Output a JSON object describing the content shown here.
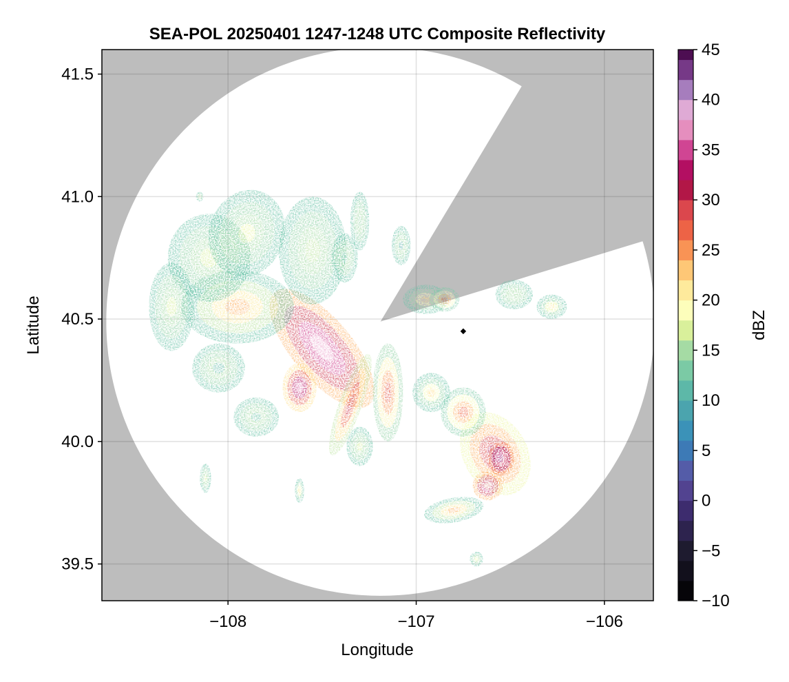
{
  "chart_data": {
    "type": "heatmap",
    "title": "SEA-POL 20250401 1247-1248 UTC Composite Reflectivity",
    "xlabel": "Longitude",
    "ylabel": "Latitude",
    "xlim": [
      -108.67,
      -105.74
    ],
    "ylim": [
      39.35,
      41.6
    ],
    "x_ticks": [
      -108,
      -107,
      -106
    ],
    "x_tick_labels": [
      "−108",
      "−107",
      "−106"
    ],
    "y_ticks": [
      39.5,
      40.0,
      40.5,
      41.0,
      41.5
    ],
    "y_tick_labels": [
      "39.5",
      "40.0",
      "40.5",
      "41.0",
      "41.5"
    ],
    "grid": true,
    "colorbar": {
      "label": "dBZ",
      "min": -10,
      "max": 45,
      "step": 2,
      "ticks": [
        -10,
        -5,
        0,
        5,
        10,
        15,
        20,
        25,
        30,
        35,
        40,
        45
      ],
      "tick_labels": [
        "−10",
        "−5",
        "0",
        "5",
        "10",
        "15",
        "20",
        "25",
        "30",
        "35",
        "40",
        "45"
      ]
    },
    "no_data_color": "#bdbdbd",
    "radar": {
      "center": [
        -107.19,
        40.49
      ],
      "range_max_lat_deg": 1.12,
      "blocked_sectors_deg": [
        [
          18,
          58
        ]
      ]
    },
    "marker": {
      "lon": -106.75,
      "lat": 40.45
    },
    "cells": [
      {
        "lon": -107.5,
        "lat": 40.38,
        "rlon": 0.16,
        "rlat": 0.3,
        "peak": 38,
        "angle": -40
      },
      {
        "lon": -107.62,
        "lat": 40.22,
        "rlon": 0.09,
        "rlat": 0.1,
        "peak": 36,
        "angle": 0
      },
      {
        "lon": -107.95,
        "lat": 40.55,
        "rlon": 0.3,
        "rlat": 0.15,
        "peak": 24,
        "angle": 0
      },
      {
        "lon": -108.1,
        "lat": 40.75,
        "rlon": 0.22,
        "rlat": 0.18,
        "peak": 17,
        "angle": 0
      },
      {
        "lon": -107.9,
        "lat": 40.85,
        "rlon": 0.2,
        "rlat": 0.18,
        "peak": 18,
        "angle": 20
      },
      {
        "lon": -107.55,
        "lat": 40.78,
        "rlon": 0.18,
        "rlat": 0.22,
        "peak": 16,
        "angle": 0
      },
      {
        "lon": -108.3,
        "lat": 40.55,
        "rlon": 0.12,
        "rlat": 0.18,
        "peak": 17,
        "angle": 0
      },
      {
        "lon": -108.05,
        "lat": 40.3,
        "rlon": 0.14,
        "rlat": 0.1,
        "peak": 11,
        "angle": 0
      },
      {
        "lon": -107.85,
        "lat": 40.1,
        "rlon": 0.12,
        "rlat": 0.08,
        "peak": 12,
        "angle": 0
      },
      {
        "lon": -107.3,
        "lat": 40.9,
        "rlon": 0.05,
        "rlat": 0.12,
        "peak": 14,
        "angle": 0
      },
      {
        "lon": -107.08,
        "lat": 40.8,
        "rlon": 0.05,
        "rlat": 0.08,
        "peak": 10,
        "angle": 0
      },
      {
        "lon": -107.38,
        "lat": 40.75,
        "rlon": 0.07,
        "rlat": 0.1,
        "peak": 13,
        "angle": 0
      },
      {
        "lon": -107.35,
        "lat": 40.15,
        "rlon": 0.06,
        "rlat": 0.22,
        "peak": 30,
        "angle": 20
      },
      {
        "lon": -107.15,
        "lat": 40.2,
        "rlon": 0.08,
        "rlat": 0.2,
        "peak": 28,
        "angle": 0
      },
      {
        "lon": -107.3,
        "lat": 39.98,
        "rlon": 0.07,
        "rlat": 0.08,
        "peak": 17,
        "angle": 0
      },
      {
        "lon": -106.95,
        "lat": 40.58,
        "rlon": 0.12,
        "rlat": 0.06,
        "peak": 22,
        "angle": 0
      },
      {
        "lon": -106.85,
        "lat": 40.58,
        "rlon": 0.08,
        "rlat": 0.05,
        "peak": 27,
        "angle": 0
      },
      {
        "lon": -106.58,
        "lat": 39.95,
        "rlon": 0.17,
        "rlat": 0.18,
        "peak": 32,
        "angle": -30
      },
      {
        "lon": -106.55,
        "lat": 39.93,
        "rlon": 0.07,
        "rlat": 0.07,
        "peak": 40,
        "angle": 0
      },
      {
        "lon": -106.62,
        "lat": 39.82,
        "rlon": 0.08,
        "rlat": 0.06,
        "peak": 38,
        "angle": 0
      },
      {
        "lon": -106.75,
        "lat": 40.12,
        "rlon": 0.12,
        "rlat": 0.1,
        "peak": 27,
        "angle": 0
      },
      {
        "lon": -106.92,
        "lat": 40.2,
        "rlon": 0.1,
        "rlat": 0.08,
        "peak": 22,
        "angle": 0
      },
      {
        "lon": -106.8,
        "lat": 39.72,
        "rlon": 0.16,
        "rlat": 0.05,
        "peak": 24,
        "angle": -10
      },
      {
        "lon": -106.48,
        "lat": 40.6,
        "rlon": 0.1,
        "rlat": 0.06,
        "peak": 15,
        "angle": 0
      },
      {
        "lon": -106.28,
        "lat": 40.55,
        "rlon": 0.08,
        "rlat": 0.05,
        "peak": 21,
        "angle": 0
      },
      {
        "lon": -108.12,
        "lat": 39.85,
        "rlon": 0.03,
        "rlat": 0.06,
        "peak": 17,
        "angle": 0
      },
      {
        "lon": -107.62,
        "lat": 39.8,
        "rlon": 0.025,
        "rlat": 0.05,
        "peak": 22,
        "angle": 0
      },
      {
        "lon": -106.68,
        "lat": 39.52,
        "rlon": 0.035,
        "rlat": 0.03,
        "peak": 19,
        "angle": 0
      },
      {
        "lon": -108.15,
        "lat": 41.0,
        "rlon": 0.02,
        "rlat": 0.02,
        "peak": 16,
        "angle": 0
      }
    ]
  }
}
